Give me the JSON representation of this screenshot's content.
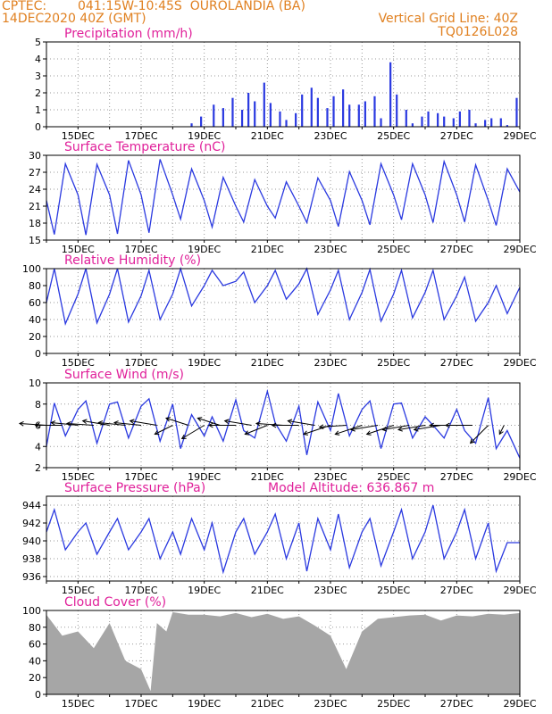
{
  "header": {
    "center": "CPTEC:",
    "location": "041:15W-10:45S  OUROLANDIA (BA)",
    "run": "14DEC2020 40Z (GMT)",
    "grid_note": "Vertical Grid Line: 40Z",
    "model_code": "TQ0126L028"
  },
  "colors": {
    "header": "#e08020",
    "title": "#e0209a",
    "series": "#2a39e0",
    "cloud": "#a6a6a6",
    "axis": "#000000"
  },
  "x_ticks": [
    "15DEC",
    "17DEC",
    "19DEC",
    "21DEC",
    "23DEC",
    "25DEC",
    "27DEC",
    "29DEC"
  ],
  "model_altitude": "Model Altitude: 636.867 m",
  "chart_data": [
    {
      "type": "bar",
      "title": "Precipitation (mm/h)",
      "x": [
        4.6,
        4.9,
        5.3,
        5.6,
        5.9,
        6.2,
        6.4,
        6.6,
        6.9,
        7.1,
        7.4,
        7.6,
        7.9,
        8.1,
        8.4,
        8.6,
        8.9,
        9.1,
        9.4,
        9.6,
        9.9,
        10.1,
        10.4,
        10.6,
        10.9,
        11.1,
        11.4,
        11.6,
        11.9,
        12.1,
        12.4,
        12.6,
        12.9,
        13.1,
        13.4,
        13.6,
        13.9,
        14.1,
        14.4,
        14.6,
        14.9
      ],
      "values": [
        0.2,
        0.6,
        1.3,
        1.1,
        1.7,
        1.0,
        2.0,
        1.5,
        2.6,
        1.4,
        0.9,
        0.4,
        0.8,
        1.9,
        2.3,
        1.7,
        1.1,
        1.8,
        2.2,
        1.3,
        1.3,
        1.5,
        1.8,
        0.5,
        3.8,
        1.9,
        1.0,
        0.2,
        0.6,
        0.9,
        0.8,
        0.6,
        0.5,
        0.9,
        1.0,
        0.2,
        0.4,
        0.5,
        0.5,
        0.1,
        1.7
      ],
      "yticks": [
        0,
        1,
        2,
        3,
        4,
        5
      ],
      "ylim": [
        0,
        5
      ]
    },
    {
      "type": "line",
      "title": "Surface Temperature (nC)",
      "x": [
        0,
        0.25,
        0.6,
        1.0,
        1.25,
        1.6,
        2.0,
        2.25,
        2.6,
        3.0,
        3.25,
        3.6,
        4.0,
        4.25,
        4.6,
        5.0,
        5.25,
        5.6,
        6.0,
        6.25,
        6.6,
        7.0,
        7.25,
        7.6,
        8.0,
        8.25,
        8.6,
        9.0,
        9.25,
        9.6,
        10.0,
        10.25,
        10.6,
        11.0,
        11.25,
        11.6,
        12.0,
        12.25,
        12.6,
        13.0,
        13.25,
        13.6,
        14.0,
        14.25,
        14.6,
        15.0
      ],
      "values": [
        22,
        16.0,
        28.5,
        23,
        15.9,
        28.4,
        23,
        16.1,
        29.1,
        23,
        16.3,
        29.3,
        23,
        18.7,
        27.6,
        22,
        17.3,
        26.1,
        21,
        18.2,
        25.7,
        21,
        18.9,
        25.3,
        21,
        18.1,
        26.0,
        22,
        17.4,
        27.1,
        22,
        17.7,
        28.5,
        23,
        18.6,
        28.5,
        23,
        18.1,
        28.9,
        23,
        18.2,
        28.3,
        22,
        17.6,
        27.6,
        23.5
      ],
      "yticks": [
        15,
        18,
        21,
        24,
        27,
        30
      ],
      "ylim": [
        15,
        30
      ]
    },
    {
      "type": "line",
      "title": "Relative Humidity (%)",
      "x": [
        0,
        0.25,
        0.6,
        1.0,
        1.25,
        1.6,
        2.0,
        2.25,
        2.6,
        3.0,
        3.25,
        3.6,
        4.0,
        4.25,
        4.6,
        5.0,
        5.25,
        5.6,
        6.0,
        6.25,
        6.6,
        7.0,
        7.25,
        7.6,
        8.0,
        8.25,
        8.6,
        9.0,
        9.25,
        9.6,
        10.0,
        10.25,
        10.6,
        11.0,
        11.25,
        11.6,
        12.0,
        12.25,
        12.6,
        13.0,
        13.25,
        13.6,
        14.0,
        14.25,
        14.6,
        15.0
      ],
      "values": [
        60,
        100,
        35,
        70,
        100,
        36,
        70,
        100,
        37,
        68,
        98,
        40,
        70,
        100,
        56,
        80,
        98,
        80,
        85,
        96,
        60,
        80,
        98,
        64,
        82,
        100,
        46,
        75,
        98,
        40,
        72,
        99,
        38,
        70,
        98,
        42,
        72,
        98,
        40,
        68,
        90,
        38,
        60,
        80,
        47,
        78
      ],
      "yticks": [
        0,
        20,
        40,
        60,
        80,
        100
      ],
      "ylim": [
        0,
        100
      ]
    },
    {
      "type": "line",
      "title": "Surface Wind (m/s)",
      "x": [
        0,
        0.25,
        0.6,
        1.0,
        1.25,
        1.6,
        2.0,
        2.25,
        2.6,
        3.0,
        3.25,
        3.6,
        4.0,
        4.25,
        4.6,
        5.0,
        5.25,
        5.6,
        6.0,
        6.25,
        6.6,
        7.0,
        7.25,
        7.6,
        8.0,
        8.25,
        8.6,
        9.0,
        9.25,
        9.6,
        10.0,
        10.25,
        10.6,
        11.0,
        11.25,
        11.6,
        12.0,
        12.25,
        12.6,
        13.0,
        13.25,
        13.6,
        14.0,
        14.25,
        14.6,
        15.0
      ],
      "values": [
        4.0,
        8.1,
        5.0,
        7.5,
        8.3,
        4.3,
        8.0,
        8.2,
        4.8,
        7.8,
        8.5,
        4.5,
        8.0,
        3.8,
        7.0,
        5.0,
        6.8,
        4.5,
        8.4,
        5.5,
        4.8,
        9.2,
        6.2,
        4.5,
        7.8,
        3.2,
        8.2,
        5.5,
        9.0,
        5.0,
        7.5,
        8.3,
        3.8,
        8.0,
        8.1,
        4.8,
        6.8,
        6.0,
        4.8,
        7.5,
        5.5,
        4.3,
        8.6,
        3.8,
        5.5,
        2.9
      ],
      "yticks": [
        2,
        4,
        6,
        8,
        10
      ],
      "ylim": [
        2,
        10
      ],
      "wind_barbs": {
        "x": [
          0,
          0.5,
          1,
          1.5,
          2,
          2.5,
          3,
          3.5,
          4,
          4.5,
          5,
          5.5,
          6,
          6.5,
          7,
          7.5,
          8,
          8.5,
          9,
          9.5,
          10,
          10.5,
          11,
          11.5,
          12,
          12.5,
          13,
          13.5,
          14,
          14.5
        ],
        "u": [
          -3,
          -3,
          -3,
          -3,
          -3,
          -3,
          -3,
          -3,
          -2,
          -2.5,
          -2.5,
          -2.5,
          -3,
          -3,
          -2.5,
          -3,
          -3,
          -3,
          -3,
          -3,
          -3,
          -3,
          -3,
          -3,
          -3,
          -3,
          -3,
          -3,
          -2,
          -0.5
        ],
        "v": [
          0.2,
          0,
          0.3,
          0.2,
          0.5,
          0.3,
          0.3,
          0.5,
          -1.0,
          0.8,
          -1.5,
          0.8,
          0,
          0.5,
          -1.0,
          0.2,
          0,
          0.5,
          -1.0,
          -0.2,
          -1.0,
          -0.5,
          -1.0,
          -0.5,
          -0.5,
          -0.5,
          0,
          0,
          -2.0,
          -1.0
        ]
      }
    },
    {
      "type": "line",
      "title": "Surface Pressure (hPa)",
      "x": [
        0,
        0.25,
        0.6,
        1.0,
        1.25,
        1.6,
        2.0,
        2.25,
        2.6,
        3.0,
        3.25,
        3.6,
        4.0,
        4.25,
        4.6,
        5.0,
        5.25,
        5.6,
        6.0,
        6.25,
        6.6,
        7.0,
        7.25,
        7.6,
        8.0,
        8.25,
        8.6,
        9.0,
        9.25,
        9.6,
        10.0,
        10.25,
        10.6,
        11.0,
        11.25,
        11.6,
        12.0,
        12.25,
        12.6,
        13.0,
        13.25,
        13.6,
        14.0,
        14.25,
        14.6,
        15.0
      ],
      "values": [
        941,
        943.5,
        939,
        941,
        942,
        938.5,
        941,
        942.5,
        939,
        941,
        942.5,
        938,
        941,
        938.5,
        942.5,
        939,
        942,
        936.5,
        941,
        942.5,
        938.5,
        941,
        943,
        938,
        942,
        936.6,
        942.5,
        939,
        943,
        937,
        941,
        942.5,
        937.2,
        941,
        943.5,
        938,
        941,
        944,
        938,
        941,
        943.5,
        938,
        942,
        936.6,
        939.8,
        939.8
      ],
      "yticks": [
        936,
        938,
        940,
        942,
        944
      ],
      "ylim": [
        935.5,
        945
      ]
    },
    {
      "type": "area",
      "title": "Cloud Cover (%)",
      "x": [
        0,
        0.5,
        1,
        1.5,
        2,
        2.5,
        3,
        3.3,
        3.5,
        3.8,
        4,
        4.5,
        5,
        5.5,
        6,
        6.5,
        7,
        7.5,
        8,
        8.5,
        9,
        9.5,
        10,
        10.5,
        11,
        11.5,
        12,
        12.5,
        13,
        13.5,
        14,
        14.5,
        15
      ],
      "values": [
        95,
        70,
        75,
        55,
        85,
        40,
        30,
        4,
        85,
        75,
        98,
        95,
        95,
        93,
        97,
        92,
        96,
        90,
        93,
        82,
        70,
        30,
        75,
        90,
        92,
        94,
        95,
        88,
        94,
        93,
        96,
        95,
        97
      ],
      "yticks": [
        0,
        20,
        40,
        60,
        80,
        100
      ],
      "ylim": [
        0,
        100
      ]
    }
  ]
}
